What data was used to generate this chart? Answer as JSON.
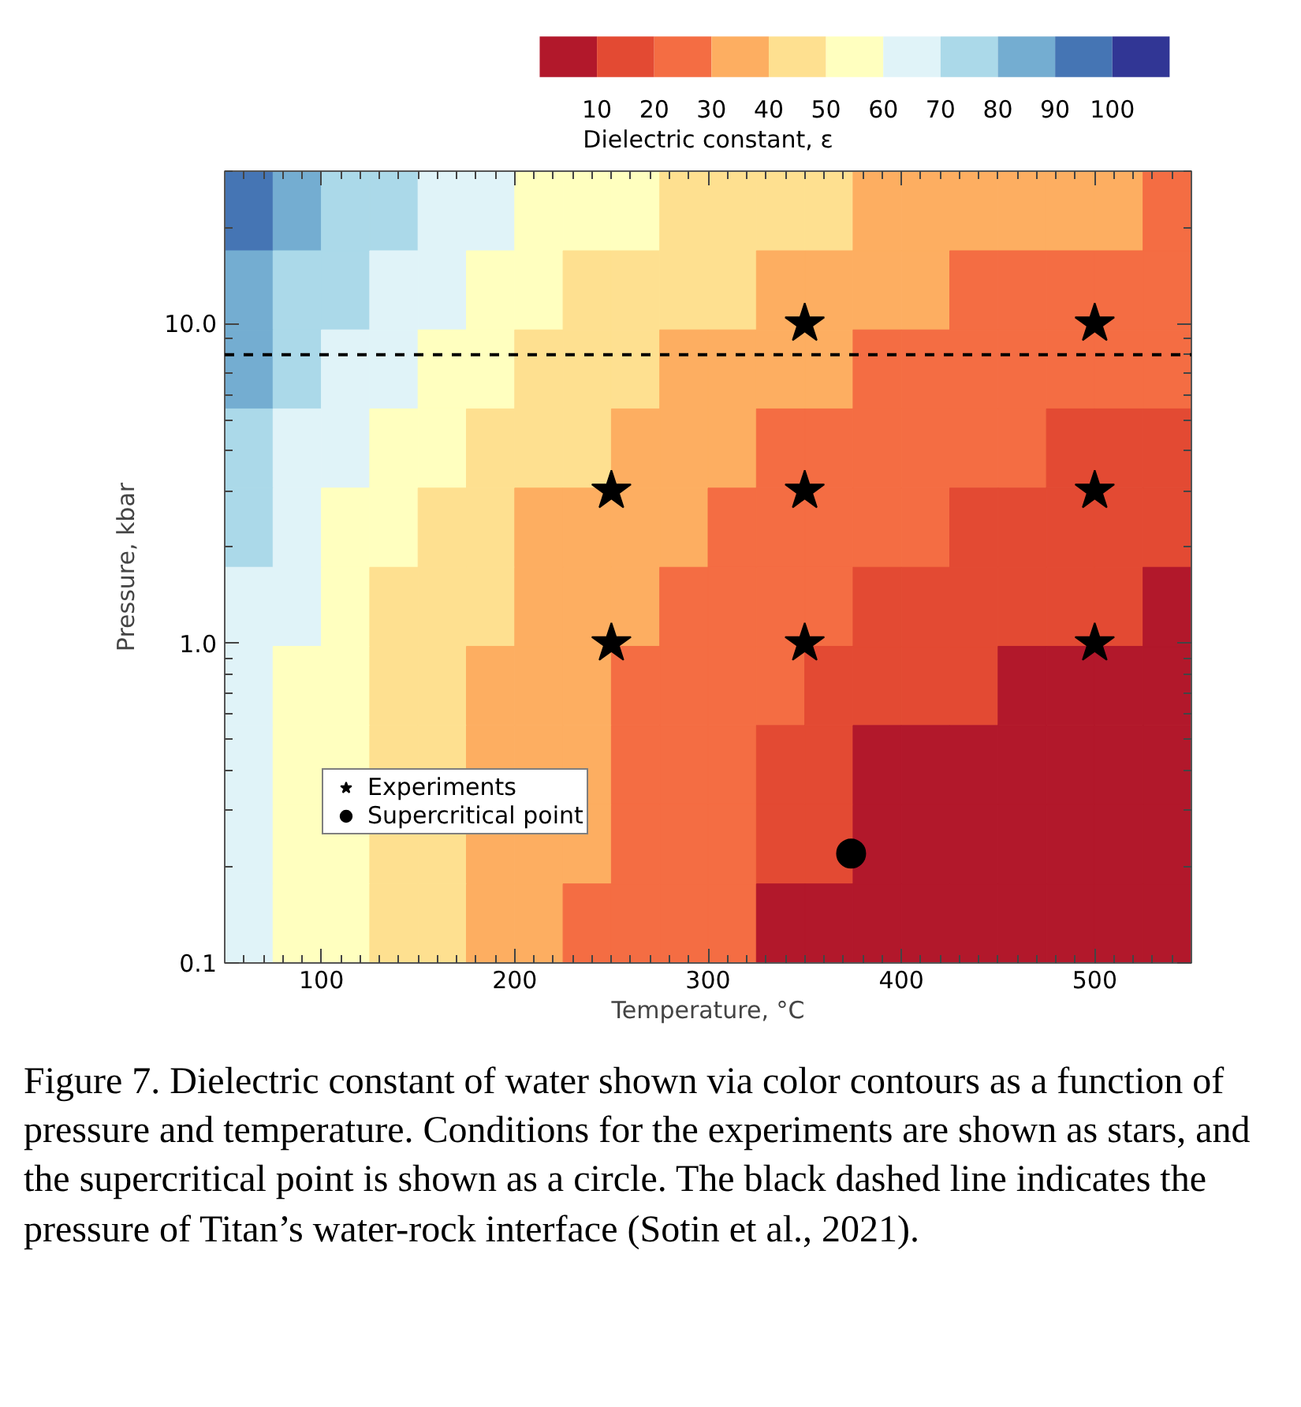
{
  "chart_data": {
    "type": "heatmap",
    "xlabel": "Temperature, °C",
    "ylabel": "Pressure, kbar",
    "clabel": "Dielectric constant, ε",
    "x": [
      62.5,
      87.5,
      112.5,
      137.5,
      162.5,
      187.5,
      212.5,
      237.5,
      262.5,
      287.5,
      312.5,
      337.5,
      362.5,
      387.5,
      412.5,
      437.5,
      462.5,
      487.5,
      512.5,
      537.5
    ],
    "y": [
      22.5,
      12.7,
      7.2,
      4.07,
      2.3,
      1.3,
      0.736,
      0.416,
      0.235,
      0.133
    ],
    "cells": [
      [
        95,
        85,
        75,
        75,
        65,
        65,
        55,
        55,
        55,
        45,
        45,
        45,
        45,
        35,
        35,
        35,
        35,
        35,
        35,
        25
      ],
      [
        85,
        75,
        75,
        65,
        65,
        55,
        55,
        45,
        45,
        45,
        45,
        35,
        35,
        35,
        35,
        25,
        25,
        25,
        25,
        25
      ],
      [
        85,
        75,
        65,
        65,
        55,
        55,
        45,
        45,
        45,
        35,
        35,
        35,
        35,
        25,
        25,
        25,
        25,
        25,
        25,
        25
      ],
      [
        75,
        65,
        65,
        55,
        55,
        45,
        45,
        45,
        35,
        35,
        35,
        25,
        25,
        25,
        25,
        25,
        25,
        15,
        15,
        15
      ],
      [
        75,
        65,
        55,
        55,
        45,
        45,
        35,
        35,
        35,
        35,
        25,
        25,
        25,
        25,
        25,
        15,
        15,
        15,
        15,
        15
      ],
      [
        65,
        65,
        55,
        45,
        45,
        45,
        35,
        35,
        35,
        25,
        25,
        25,
        25,
        15,
        15,
        15,
        15,
        15,
        15,
        5
      ],
      [
        65,
        55,
        55,
        45,
        45,
        35,
        35,
        35,
        25,
        25,
        25,
        25,
        15,
        15,
        15,
        15,
        5,
        5,
        5,
        5
      ],
      [
        65,
        55,
        55,
        45,
        45,
        35,
        35,
        35,
        25,
        25,
        25,
        15,
        15,
        5,
        5,
        5,
        5,
        5,
        5,
        5
      ],
      [
        65,
        55,
        55,
        45,
        45,
        35,
        35,
        35,
        25,
        25,
        25,
        15,
        15,
        5,
        5,
        5,
        5,
        5,
        5,
        5
      ],
      [
        65,
        55,
        55,
        45,
        45,
        35,
        35,
        25,
        25,
        25,
        25,
        5,
        5,
        5,
        5,
        5,
        5,
        5,
        5,
        5
      ]
    ],
    "colors": [
      "#b2182b",
      "#e34a33",
      "#f46d43",
      "#fdae61",
      "#fee090",
      "#ffffbf",
      "#e0f3f8",
      "#abd9e9",
      "#74add1",
      "#4575b4",
      "#313695"
    ],
    "clim": [
      0,
      110
    ],
    "cticks": [
      10,
      20,
      30,
      40,
      50,
      60,
      70,
      80,
      90,
      100
    ],
    "xlim": [
      50,
      550
    ],
    "xticks": [
      100,
      200,
      300,
      400,
      500
    ],
    "ylim": [
      0.1,
      30
    ],
    "yticks": [
      {
        "value": 0.1,
        "label": "0.1"
      },
      {
        "value": 1,
        "label": "1.0"
      },
      {
        "value": 10,
        "label": "10.0"
      }
    ],
    "log": "y",
    "series": [
      {
        "name": "Experiments",
        "type": "scatter",
        "marker": "star",
        "color": "#000000",
        "x": [
          250,
          350,
          500,
          250,
          350,
          500,
          350,
          500
        ],
        "values": [
          1,
          1,
          1,
          3,
          3,
          3,
          10,
          10
        ]
      },
      {
        "name": "Supercritical point",
        "type": "scatter",
        "marker": "circle",
        "color": "#000000",
        "x": [
          374
        ],
        "values": [
          0.22
        ]
      }
    ],
    "ref_lines": [
      {
        "axis": "y",
        "value": 8,
        "color": "#000000",
        "line_style": "dashed"
      }
    ],
    "legend": "bottom left",
    "annotations": [
      "Figure 7. Dielectric constant of water shown via color contours as a function of pressure and temperature. Conditions for the experiments are shown as stars, and the supercritical point is shown as a circle. The black dashed line indicates the pressure of Titan’s water-rock interface (Sotin et al., 2021)."
    ]
  }
}
